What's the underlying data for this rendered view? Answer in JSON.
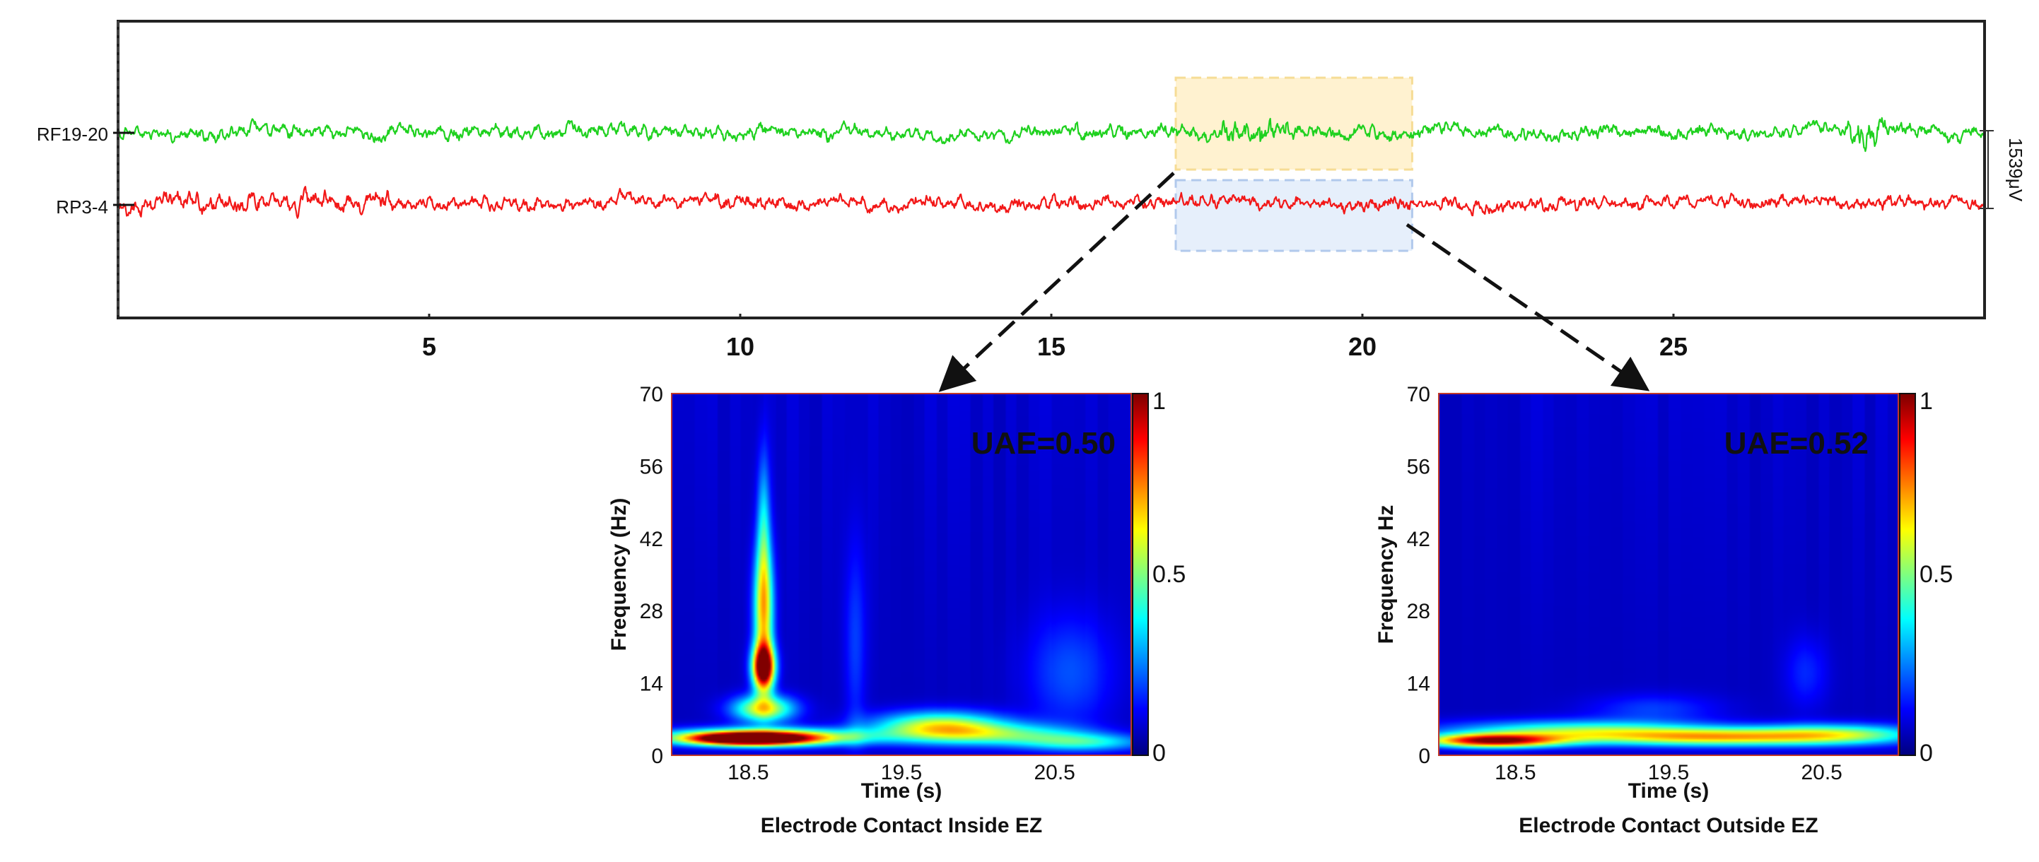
{
  "chart_data": [
    {
      "type": "line",
      "channels": [
        {
          "name": "RF19-20",
          "color": "#1fd11f"
        },
        {
          "name": "RP3-4",
          "color": "#f21818"
        }
      ],
      "x_ticks": [
        5,
        10,
        15,
        20,
        25
      ],
      "xlim": [
        0,
        30
      ],
      "scale_bar": "1539μV",
      "highlight": {
        "x_range": [
          17.0,
          20.8
        ],
        "colors": [
          "#fff1cc",
          "#e4eefb"
        ]
      }
    },
    {
      "type": "heatmap",
      "title": "Electrode Contact Inside EZ",
      "xlabel": "Time (s)",
      "ylabel": "Frequency (Hz)",
      "x_ticks": [
        "18.5",
        "19.5",
        "20.5"
      ],
      "y_ticks": [
        0,
        14,
        28,
        42,
        56,
        70
      ],
      "xlim": [
        18.0,
        21.0
      ],
      "ylim": [
        0,
        70
      ],
      "annotation": "UAE=0.50",
      "colorbar_ticks": [
        "0",
        "0.5",
        "1"
      ],
      "blobs": [
        {
          "t": 18.6,
          "f": 17,
          "dt": 0.05,
          "df": 3,
          "v": 1.0
        },
        {
          "t": 18.6,
          "f": 28,
          "dt": 0.045,
          "df": 9,
          "v": 0.6
        },
        {
          "t": 18.6,
          "f": 45,
          "dt": 0.03,
          "df": 10,
          "v": 0.25
        },
        {
          "t": 18.6,
          "f": 9,
          "dt": 0.14,
          "df": 1.8,
          "v": 0.55
        },
        {
          "t": 18.6,
          "f": 3.5,
          "dt": 0.45,
          "df": 1.2,
          "v": 0.75
        },
        {
          "t": 18.5,
          "f": 3.2,
          "dt": 0.25,
          "df": 0.8,
          "v": 0.9
        },
        {
          "t": 19.75,
          "f": 5.5,
          "dt": 0.3,
          "df": 2.0,
          "v": 0.55
        },
        {
          "t": 20.2,
          "f": 4,
          "dt": 0.35,
          "df": 1.5,
          "v": 0.3
        },
        {
          "t": 20.7,
          "f": 2.5,
          "dt": 0.3,
          "df": 1.2,
          "v": 0.3
        },
        {
          "t": 20.6,
          "f": 16,
          "dt": 0.2,
          "df": 8,
          "v": 0.14
        },
        {
          "t": 19.2,
          "f": 22,
          "dt": 0.05,
          "df": 14,
          "v": 0.12
        }
      ]
    },
    {
      "type": "heatmap",
      "title": "Electrode Contact Outside EZ",
      "xlabel": "Time (s)",
      "ylabel": "Frequency Hz",
      "x_ticks": [
        "18.5",
        "19.5",
        "20.5"
      ],
      "y_ticks": [
        0,
        14,
        28,
        42,
        56,
        70
      ],
      "xlim": [
        18.0,
        21.0
      ],
      "ylim": [
        0,
        70
      ],
      "annotation": "UAE=0.52",
      "colorbar_ticks": [
        "0",
        "0.5",
        "1"
      ],
      "blobs": [
        {
          "t": 18.35,
          "f": 2.8,
          "dt": 0.3,
          "df": 0.9,
          "v": 0.85
        },
        {
          "t": 18.9,
          "f": 4.5,
          "dt": 0.6,
          "df": 1.5,
          "v": 0.45
        },
        {
          "t": 19.8,
          "f": 3.5,
          "dt": 0.5,
          "df": 1.2,
          "v": 0.5
        },
        {
          "t": 20.6,
          "f": 4,
          "dt": 0.4,
          "df": 1.4,
          "v": 0.45
        },
        {
          "t": 19.4,
          "f": 9,
          "dt": 0.3,
          "df": 2,
          "v": 0.12
        },
        {
          "t": 20.4,
          "f": 16,
          "dt": 0.1,
          "df": 5,
          "v": 0.1
        }
      ]
    }
  ]
}
